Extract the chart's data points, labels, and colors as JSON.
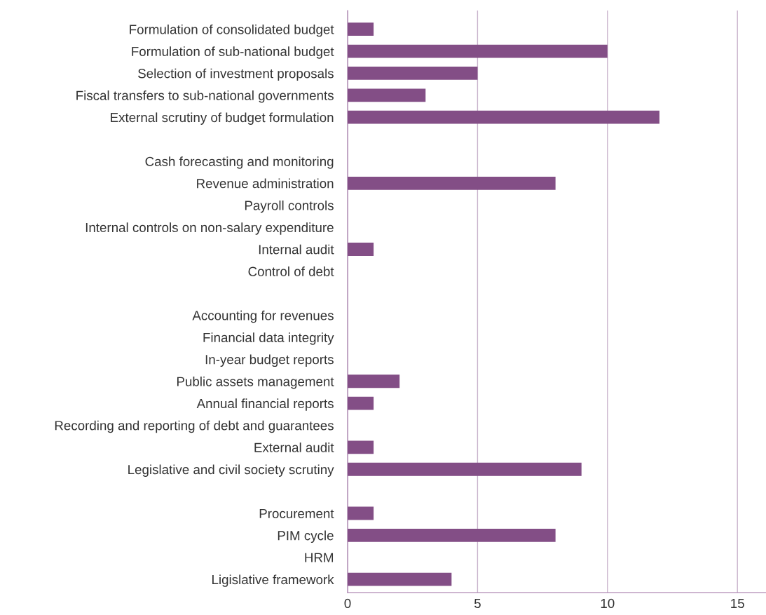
{
  "chart_data": {
    "type": "bar",
    "orientation": "horizontal",
    "categories": [
      "Formulation of consolidated budget",
      "Formulation of sub-national budget",
      "Selection of investment proposals",
      "Fiscal transfers to sub-national governments",
      "External scrutiny of budget formulation",
      null,
      "Cash forecasting and monitoring",
      "Revenue administration",
      "Payroll controls",
      "Internal controls on non-salary expenditure",
      "Internal audit",
      "Control of debt",
      null,
      "Accounting for revenues",
      "Financial data integrity",
      "In-year budget reports",
      "Public assets management",
      "Annual financial reports",
      "Recording and reporting of debt and guarantees",
      "External audit",
      "Legislative and civil society scrutiny",
      null,
      "Procurement",
      "PIM cycle",
      "HRM",
      "Ligislative framework"
    ],
    "values": [
      1,
      10,
      5,
      3,
      12,
      null,
      0,
      8,
      0,
      0,
      1,
      0,
      null,
      0,
      0,
      0,
      2,
      1,
      0,
      1,
      9,
      null,
      1,
      8,
      0,
      4
    ],
    "color": "#834e86",
    "xlim": [
      0,
      16.1
    ],
    "xticks": [
      0,
      5,
      10,
      15
    ],
    "grid": "x",
    "legend": false
  }
}
